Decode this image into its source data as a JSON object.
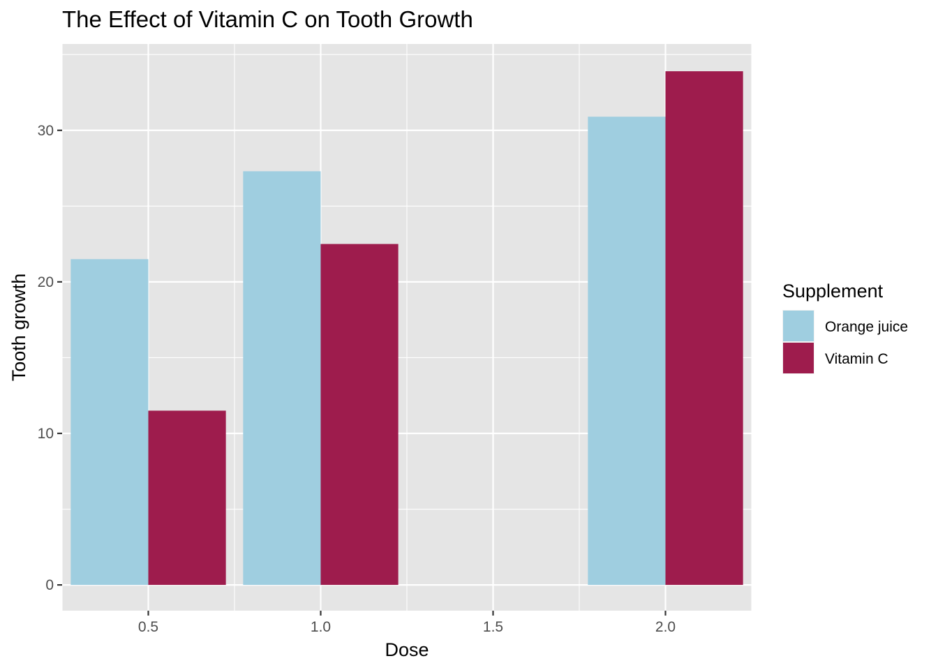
{
  "chart_data": {
    "type": "bar",
    "title": "The Effect of Vitamin C on Tooth Growth",
    "xlabel": "Dose",
    "ylabel": "Tooth growth",
    "x_scale": "continuous",
    "xlim": [
      0.25,
      2.25
    ],
    "ylim": [
      -1.7,
      35.7
    ],
    "x_ticks": [
      0.5,
      1.0,
      1.5,
      2.0
    ],
    "x_tick_labels": [
      "0.5",
      "1.0",
      "1.5",
      "2.0"
    ],
    "y_ticks": [
      0,
      10,
      20,
      30
    ],
    "y_tick_labels": [
      "0",
      "10",
      "20",
      "30"
    ],
    "grid": true,
    "bar_width": 0.45,
    "position": "dodge",
    "categories": [
      0.5,
      1.0,
      2.0
    ],
    "series": [
      {
        "name": "Orange juice",
        "values": [
          21.5,
          27.3,
          30.9
        ],
        "color": "#9FCEE0"
      },
      {
        "name": "Vitamin C",
        "values": [
          11.5,
          22.5,
          33.9
        ],
        "color": "#9E1C4D"
      }
    ],
    "legend": {
      "title": "Supplement",
      "position": "right"
    },
    "panel_background": "#E5E5E5",
    "grid_color": "#FFFFFF"
  }
}
